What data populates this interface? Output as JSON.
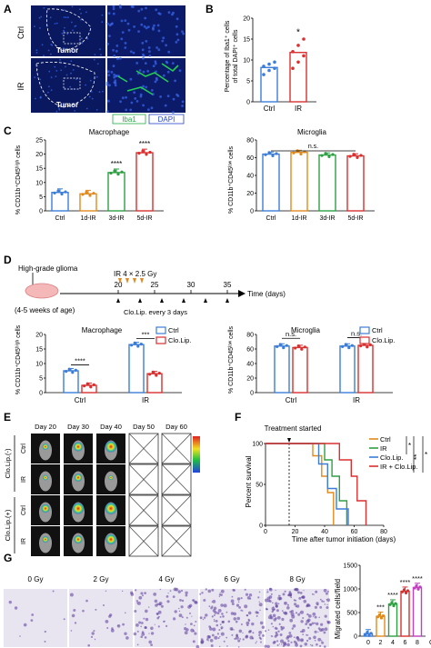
{
  "panels": {
    "A": "A",
    "B": "B",
    "C": "C",
    "D": "D",
    "E": "E",
    "F": "F",
    "G": "G"
  },
  "panelA": {
    "row_labels": [
      "Ctrl",
      "IR"
    ],
    "tumor_label": "Tumor",
    "legend": [
      "Iba1",
      "DAPI"
    ],
    "colors": {
      "iba1": "#22aa44",
      "dapi": "#2244cc"
    }
  },
  "panelB": {
    "ylabel_line1": "Percentage of Iba1⁺ cells",
    "ylabel_line2": "of total DAPI⁺ cells",
    "ticks": [
      "0",
      "5",
      "10",
      "15",
      "20"
    ],
    "categories": [
      "Ctrl",
      "IR"
    ],
    "significance": "*",
    "colors": {
      "ctrl": "#3b7dd8",
      "ir": "#d93030"
    }
  },
  "panelC": {
    "left": {
      "title": "Macrophage",
      "ylabel": "% CD11b⁺CD45ʰⁱᵍʰ cells",
      "ticks": [
        "0",
        "5",
        "10",
        "15",
        "20",
        "25"
      ],
      "categories": [
        "Ctrl",
        "1d-IR",
        "3d-IR",
        "5d-IR"
      ],
      "sig": [
        "****",
        "****"
      ]
    },
    "right": {
      "title": "Microglia",
      "ylabel": "% CD11b⁺CD45ˡᵒʷ cells",
      "ticks": [
        "0",
        "20",
        "40",
        "60",
        "80"
      ],
      "categories": [
        "Ctrl",
        "1d-IR",
        "3d-IR",
        "5d-IR"
      ],
      "sig": "n.s."
    },
    "colors": [
      "#3b7dd8",
      "#e08a1e",
      "#2ea043",
      "#d93030"
    ]
  },
  "panelD": {
    "timeline": {
      "model_label": "High-grade glioma",
      "age_label": "(4-5 weeks of age)",
      "ir_label": "IR 4 × 2.5 Gy",
      "clo_label": "Clo.Lip. every 3 days",
      "ticks": [
        "20",
        "25",
        "30",
        "35"
      ],
      "axis_label": "Time (days)"
    },
    "left": {
      "title": "Macrophage",
      "ylabel": "% CD11b⁺CD45ʰⁱᵍʰ cells",
      "ticks": [
        "0",
        "5",
        "10",
        "15",
        "20"
      ],
      "categories": [
        "Ctrl",
        "IR"
      ],
      "sig": [
        "****",
        "***"
      ]
    },
    "right": {
      "title": "Microglia",
      "ylabel": "% CD11b⁺CD45ˡᵒʷ cells",
      "ticks": [
        "0",
        "20",
        "40",
        "60",
        "80"
      ],
      "categories": [
        "Ctrl",
        "IR"
      ],
      "sig": [
        "n.s.",
        "n.s."
      ]
    },
    "legend": [
      "Ctrl",
      "Clo.Lip."
    ],
    "colors": {
      "ctrl": "#3b7dd8",
      "clo": "#d93030"
    }
  },
  "panelE": {
    "days": [
      "Day 20",
      "Day 30",
      "Day 40",
      "Day 50",
      "Day 60"
    ],
    "groups": [
      "Clo.Lip.(-)",
      "Clo.Lip.(+)"
    ],
    "rows": [
      "Ctrl",
      "IR",
      "Ctrl",
      "IR"
    ]
  },
  "panelF": {
    "annotation": "Treatment started",
    "ylabel": "Percent survival",
    "xlabel": "Time after tumor initiation (days)",
    "yticks": [
      "0",
      "50",
      "100"
    ],
    "xticks": [
      "0",
      "20",
      "40",
      "60",
      "80"
    ],
    "legend": [
      "Ctrl",
      "IR",
      "Clo.Lip.",
      "IR + Clo.Lip."
    ],
    "sig": [
      "*",
      "**",
      "*"
    ],
    "colors": [
      "#e08a1e",
      "#2ea043",
      "#3b7dd8",
      "#d93030"
    ]
  },
  "panelG": {
    "doses": [
      "0 Gy",
      "2 Gy",
      "4 Gy",
      "6 Gy",
      "8 Gy"
    ],
    "ylabel": "Migrated cells/field",
    "ticks": [
      "0",
      "500",
      "1000",
      "1500"
    ],
    "xticks": [
      "0",
      "2",
      "4",
      "6",
      "8"
    ],
    "xunit": "Gy",
    "sig": [
      "***",
      "****",
      "****",
      "****"
    ],
    "colors": [
      "#3b7dd8",
      "#e08a1e",
      "#2ea043",
      "#d93030",
      "#c040c0"
    ]
  },
  "chart_data": [
    {
      "type": "bar",
      "panel": "B",
      "categories": [
        "Ctrl",
        "IR"
      ],
      "values": [
        8.2,
        11.8
      ],
      "ylim": [
        0,
        20
      ],
      "points": [
        [
          6.5,
          7.5,
          8,
          8.5,
          9,
          9.5
        ],
        [
          8,
          9.5,
          11,
          12,
          13.5,
          15
        ]
      ]
    },
    {
      "type": "bar",
      "panel": "C-left",
      "categories": [
        "Ctrl",
        "1d-IR",
        "3d-IR",
        "5d-IR"
      ],
      "values": [
        6.5,
        6.0,
        13.5,
        20.5
      ],
      "ylim": [
        0,
        25
      ]
    },
    {
      "type": "bar",
      "panel": "C-right",
      "categories": [
        "Ctrl",
        "1d-IR",
        "3d-IR",
        "5d-IR"
      ],
      "values": [
        64,
        66,
        63,
        62
      ],
      "ylim": [
        0,
        80
      ]
    },
    {
      "type": "bar",
      "panel": "D-left",
      "categories": [
        "Ctrl",
        "IR"
      ],
      "series": [
        {
          "name": "Ctrl",
          "values": [
            7.5,
            16.5
          ]
        },
        {
          "name": "Clo.Lip.",
          "values": [
            2.5,
            6.5
          ]
        }
      ],
      "ylim": [
        0,
        20
      ]
    },
    {
      "type": "bar",
      "panel": "D-right",
      "categories": [
        "Ctrl",
        "IR"
      ],
      "series": [
        {
          "name": "Ctrl",
          "values": [
            64,
            64
          ]
        },
        {
          "name": "Clo.Lip.",
          "values": [
            62,
            65
          ]
        }
      ],
      "ylim": [
        0,
        80
      ]
    },
    {
      "type": "line",
      "panel": "F",
      "xlim": [
        0,
        80
      ],
      "ylim": [
        0,
        100
      ],
      "series": [
        {
          "name": "Ctrl",
          "steps": [
            [
              0,
              100
            ],
            [
              32,
              100
            ],
            [
              32,
              85
            ],
            [
              38,
              85
            ],
            [
              38,
              60
            ],
            [
              42,
              60
            ],
            [
              42,
              40
            ],
            [
              46,
              40
            ],
            [
              46,
              0
            ]
          ]
        },
        {
          "name": "IR",
          "steps": [
            [
              0,
              100
            ],
            [
              40,
              100
            ],
            [
              40,
              80
            ],
            [
              45,
              80
            ],
            [
              45,
              60
            ],
            [
              50,
              60
            ],
            [
              50,
              30
            ],
            [
              55,
              30
            ],
            [
              55,
              0
            ]
          ]
        },
        {
          "name": "Clo.Lip.",
          "steps": [
            [
              0,
              100
            ],
            [
              36,
              100
            ],
            [
              36,
              75
            ],
            [
              42,
              75
            ],
            [
              42,
              45
            ],
            [
              48,
              45
            ],
            [
              48,
              20
            ],
            [
              56,
              20
            ],
            [
              56,
              0
            ]
          ]
        },
        {
          "name": "IR + Clo.Lip.",
          "steps": [
            [
              0,
              100
            ],
            [
              50,
              100
            ],
            [
              50,
              80
            ],
            [
              58,
              80
            ],
            [
              58,
              60
            ],
            [
              62,
              60
            ],
            [
              62,
              30
            ],
            [
              68,
              30
            ],
            [
              68,
              0
            ]
          ]
        }
      ]
    },
    {
      "type": "bar",
      "panel": "G",
      "categories": [
        "0",
        "2",
        "4",
        "6",
        "8"
      ],
      "values": [
        50,
        420,
        680,
        950,
        1030
      ],
      "ylim": [
        0,
        1500
      ]
    }
  ]
}
